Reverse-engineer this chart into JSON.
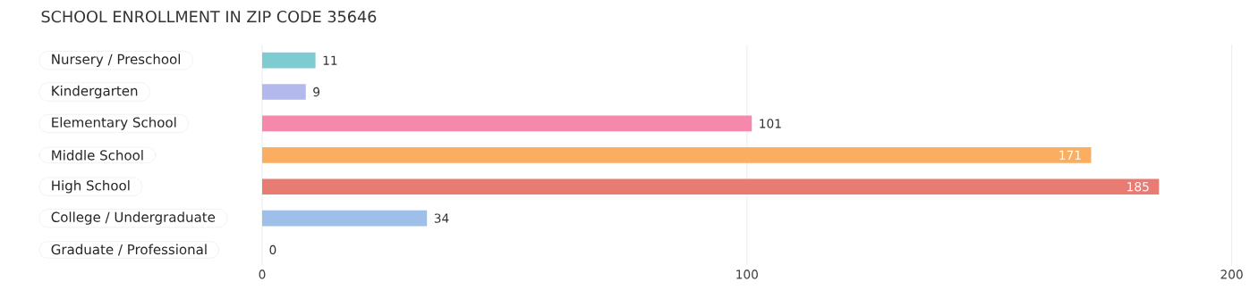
{
  "chart_data": {
    "type": "bar",
    "orientation": "horizontal",
    "title": "SCHOOL ENROLLMENT IN ZIP CODE 35646",
    "categories": [
      "Nursery / Preschool",
      "Kindergarten",
      "Elementary School",
      "Middle School",
      "High School",
      "College / Undergraduate",
      "Graduate / Professional"
    ],
    "values": [
      11,
      9,
      101,
      171,
      185,
      34,
      0
    ],
    "colors": [
      "#7ecbd1",
      "#b3b9ec",
      "#f589ac",
      "#f9ae62",
      "#e87b72",
      "#9dbfe8",
      "#d1b2d6"
    ],
    "xlim": [
      -46,
      200
    ],
    "xticks": [
      0,
      100,
      200
    ],
    "grid": "x",
    "data_labels": true
  }
}
